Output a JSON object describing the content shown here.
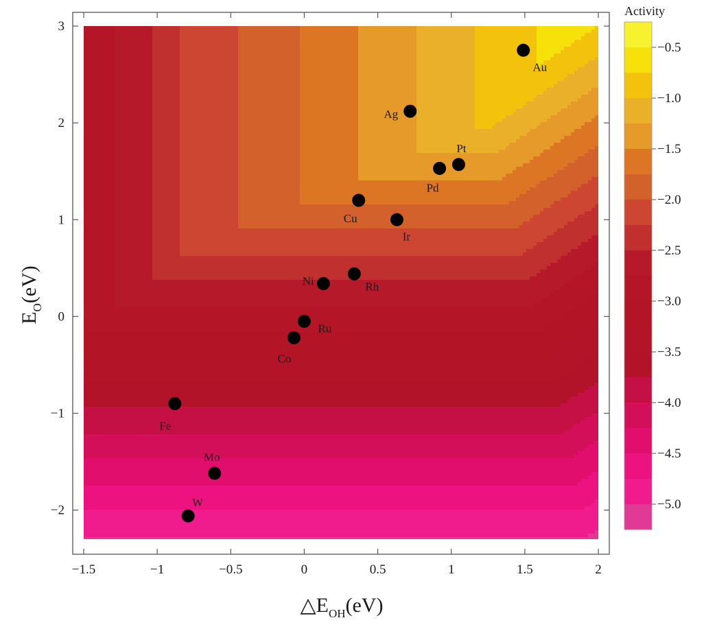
{
  "chart_data": {
    "type": "heatmap",
    "subtype": "contour",
    "xlabel": {
      "prefix": "△E",
      "sub": "OH",
      "suffix": "(eV)"
    },
    "ylabel": {
      "prefix": "E",
      "sub": "O",
      "suffix": "(eV)"
    },
    "xlim": [
      -1.5,
      2.0
    ],
    "ylim": [
      -2.3,
      3.0
    ],
    "xticks": [
      -1.5,
      -1,
      -0.5,
      0,
      0.5,
      1,
      1.5,
      2
    ],
    "xtick_labels": [
      "−1.5",
      "−1",
      "−0.5",
      "0",
      "0.5",
      "1",
      "1.5",
      "2"
    ],
    "yticks": [
      -2,
      -1,
      0,
      1,
      2,
      3
    ],
    "ytick_labels": [
      "−2",
      "−1",
      "0",
      "1",
      "2",
      "3"
    ],
    "grid": false,
    "colorbar": {
      "title": "Activity",
      "range": [
        -5.25,
        -0.25
      ],
      "ticks": [
        -0.5,
        -1.0,
        -1.5,
        -2.0,
        -2.5,
        -3.0,
        -3.5,
        -4.0,
        -4.5,
        -5.0
      ],
      "tick_labels": [
        "−0.5",
        "−1.0",
        "−1.5",
        "−2.0",
        "−2.5",
        "−3.0",
        "−3.5",
        "−4.0",
        "−4.5",
        "−5.0"
      ],
      "levels": [
        {
          "from": -0.25,
          "to": -0.5,
          "color": "#F7F22E"
        },
        {
          "from": -0.5,
          "to": -0.75,
          "color": "#F7E10A"
        },
        {
          "from": -0.75,
          "to": -1.0,
          "color": "#F2C20C"
        },
        {
          "from": -1.0,
          "to": -1.25,
          "color": "#EBB02A"
        },
        {
          "from": -1.25,
          "to": -1.5,
          "color": "#E59A2A"
        },
        {
          "from": -1.5,
          "to": -1.75,
          "color": "#DC7524"
        },
        {
          "from": -1.75,
          "to": -2.0,
          "color": "#D3612B"
        },
        {
          "from": -2.0,
          "to": -2.25,
          "color": "#CC4631"
        },
        {
          "from": -2.25,
          "to": -2.5,
          "color": "#C0302E"
        },
        {
          "from": -2.5,
          "to": -2.75,
          "color": "#B5192A"
        },
        {
          "from": -2.75,
          "to": -3.0,
          "color": "#B41628"
        },
        {
          "from": -3.0,
          "to": -3.25,
          "color": "#B31527"
        },
        {
          "from": -3.25,
          "to": -3.5,
          "color": "#B31428"
        },
        {
          "from": -3.5,
          "to": -3.75,
          "color": "#B21329"
        },
        {
          "from": -3.75,
          "to": -4.0,
          "color": "#C41044"
        },
        {
          "from": -4.0,
          "to": -4.25,
          "color": "#D40F5A"
        },
        {
          "from": -4.25,
          "to": -4.5,
          "color": "#E10E6E"
        },
        {
          "from": -4.5,
          "to": -4.75,
          "color": "#EC1280"
        },
        {
          "from": -4.75,
          "to": -5.0,
          "color": "#F01C8E"
        },
        {
          "from": -5.0,
          "to": -5.25,
          "color": "#E03A96"
        }
      ]
    },
    "contour_model": {
      "apex": [
        1.25,
        2.0
      ],
      "left_plateau_x": [
        -1.29,
        -1.03
      ]
    },
    "points": [
      {
        "label": "Au",
        "x": 1.49,
        "y": 2.75
      },
      {
        "label": "Ag",
        "x": 0.72,
        "y": 2.12
      },
      {
        "label": "Pt",
        "x": 1.05,
        "y": 1.57
      },
      {
        "label": "Pd",
        "x": 0.92,
        "y": 1.53
      },
      {
        "label": "Cu",
        "x": 0.37,
        "y": 1.2
      },
      {
        "label": "Ir",
        "x": 0.63,
        "y": 1.0
      },
      {
        "label": "Ni",
        "x": 0.13,
        "y": 0.34
      },
      {
        "label": "Rh",
        "x": 0.34,
        "y": 0.44
      },
      {
        "label": "Ru",
        "x": 0.0,
        "y": -0.05
      },
      {
        "label": "Co",
        "x": -0.07,
        "y": -0.22
      },
      {
        "label": "Fe",
        "x": -0.88,
        "y": -0.9
      },
      {
        "label": "Mo",
        "x": -0.61,
        "y": -1.62
      },
      {
        "label": "W",
        "x": -0.79,
        "y": -2.06
      }
    ]
  }
}
